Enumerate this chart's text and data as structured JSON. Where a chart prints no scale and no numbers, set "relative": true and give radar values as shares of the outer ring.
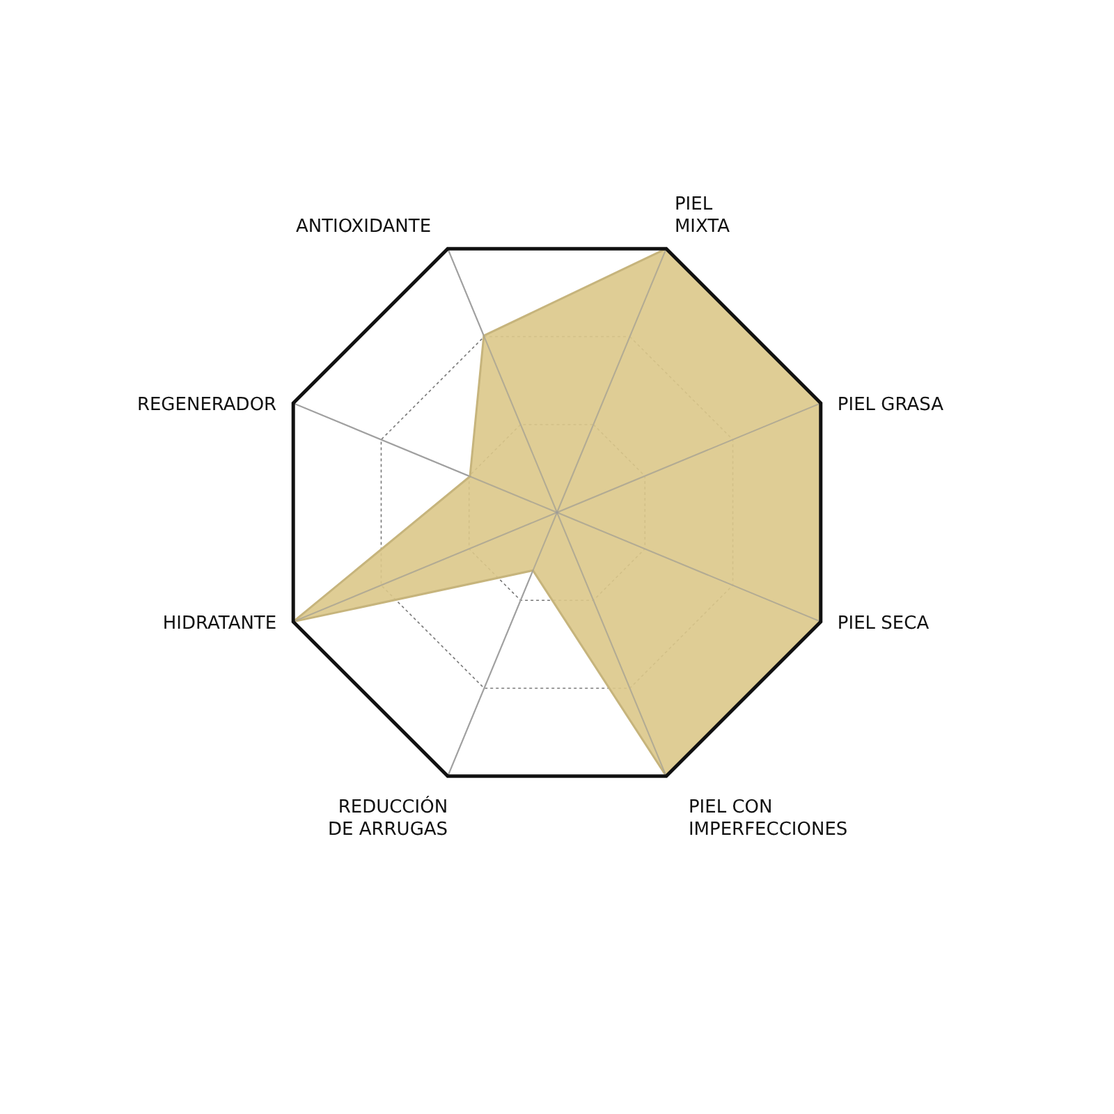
{
  "chart_data": {
    "type": "radar",
    "relative": true,
    "grid": true,
    "categories": [
      "PIEL\nMIXTA",
      "PIEL GRASA",
      "PIEL SECA",
      "PIEL CON\nIMPERFECCIONES",
      "REDUCCIÓN\nDE ARRUGAS",
      "HIDRATANTE",
      "REGENERADOR",
      "ANTIOXIDANTE"
    ],
    "series": [
      {
        "color": "#dcc88a",
        "values": [
          1,
          1,
          1,
          1,
          0.22,
          1,
          0.33,
          0.67
        ]
      }
    ]
  }
}
